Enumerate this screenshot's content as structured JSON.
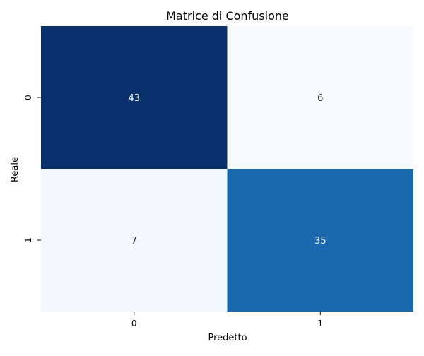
{
  "chart_data": {
    "type": "heatmap",
    "title": "Matrice di Confusione",
    "xlabel": "Predetto",
    "ylabel": "Reale",
    "x_categories": [
      "0",
      "1"
    ],
    "y_categories": [
      "0",
      "1"
    ],
    "values": [
      [
        43,
        6
      ],
      [
        7,
        35
      ]
    ],
    "colormap": "Blues",
    "vmin": 6,
    "vmax": 43,
    "colorbar": false,
    "annotations": true,
    "colors": {
      "low": "#f7fbff",
      "high": "#08306b",
      "dark_text": "#262626",
      "light_text": "#ffffff"
    }
  }
}
